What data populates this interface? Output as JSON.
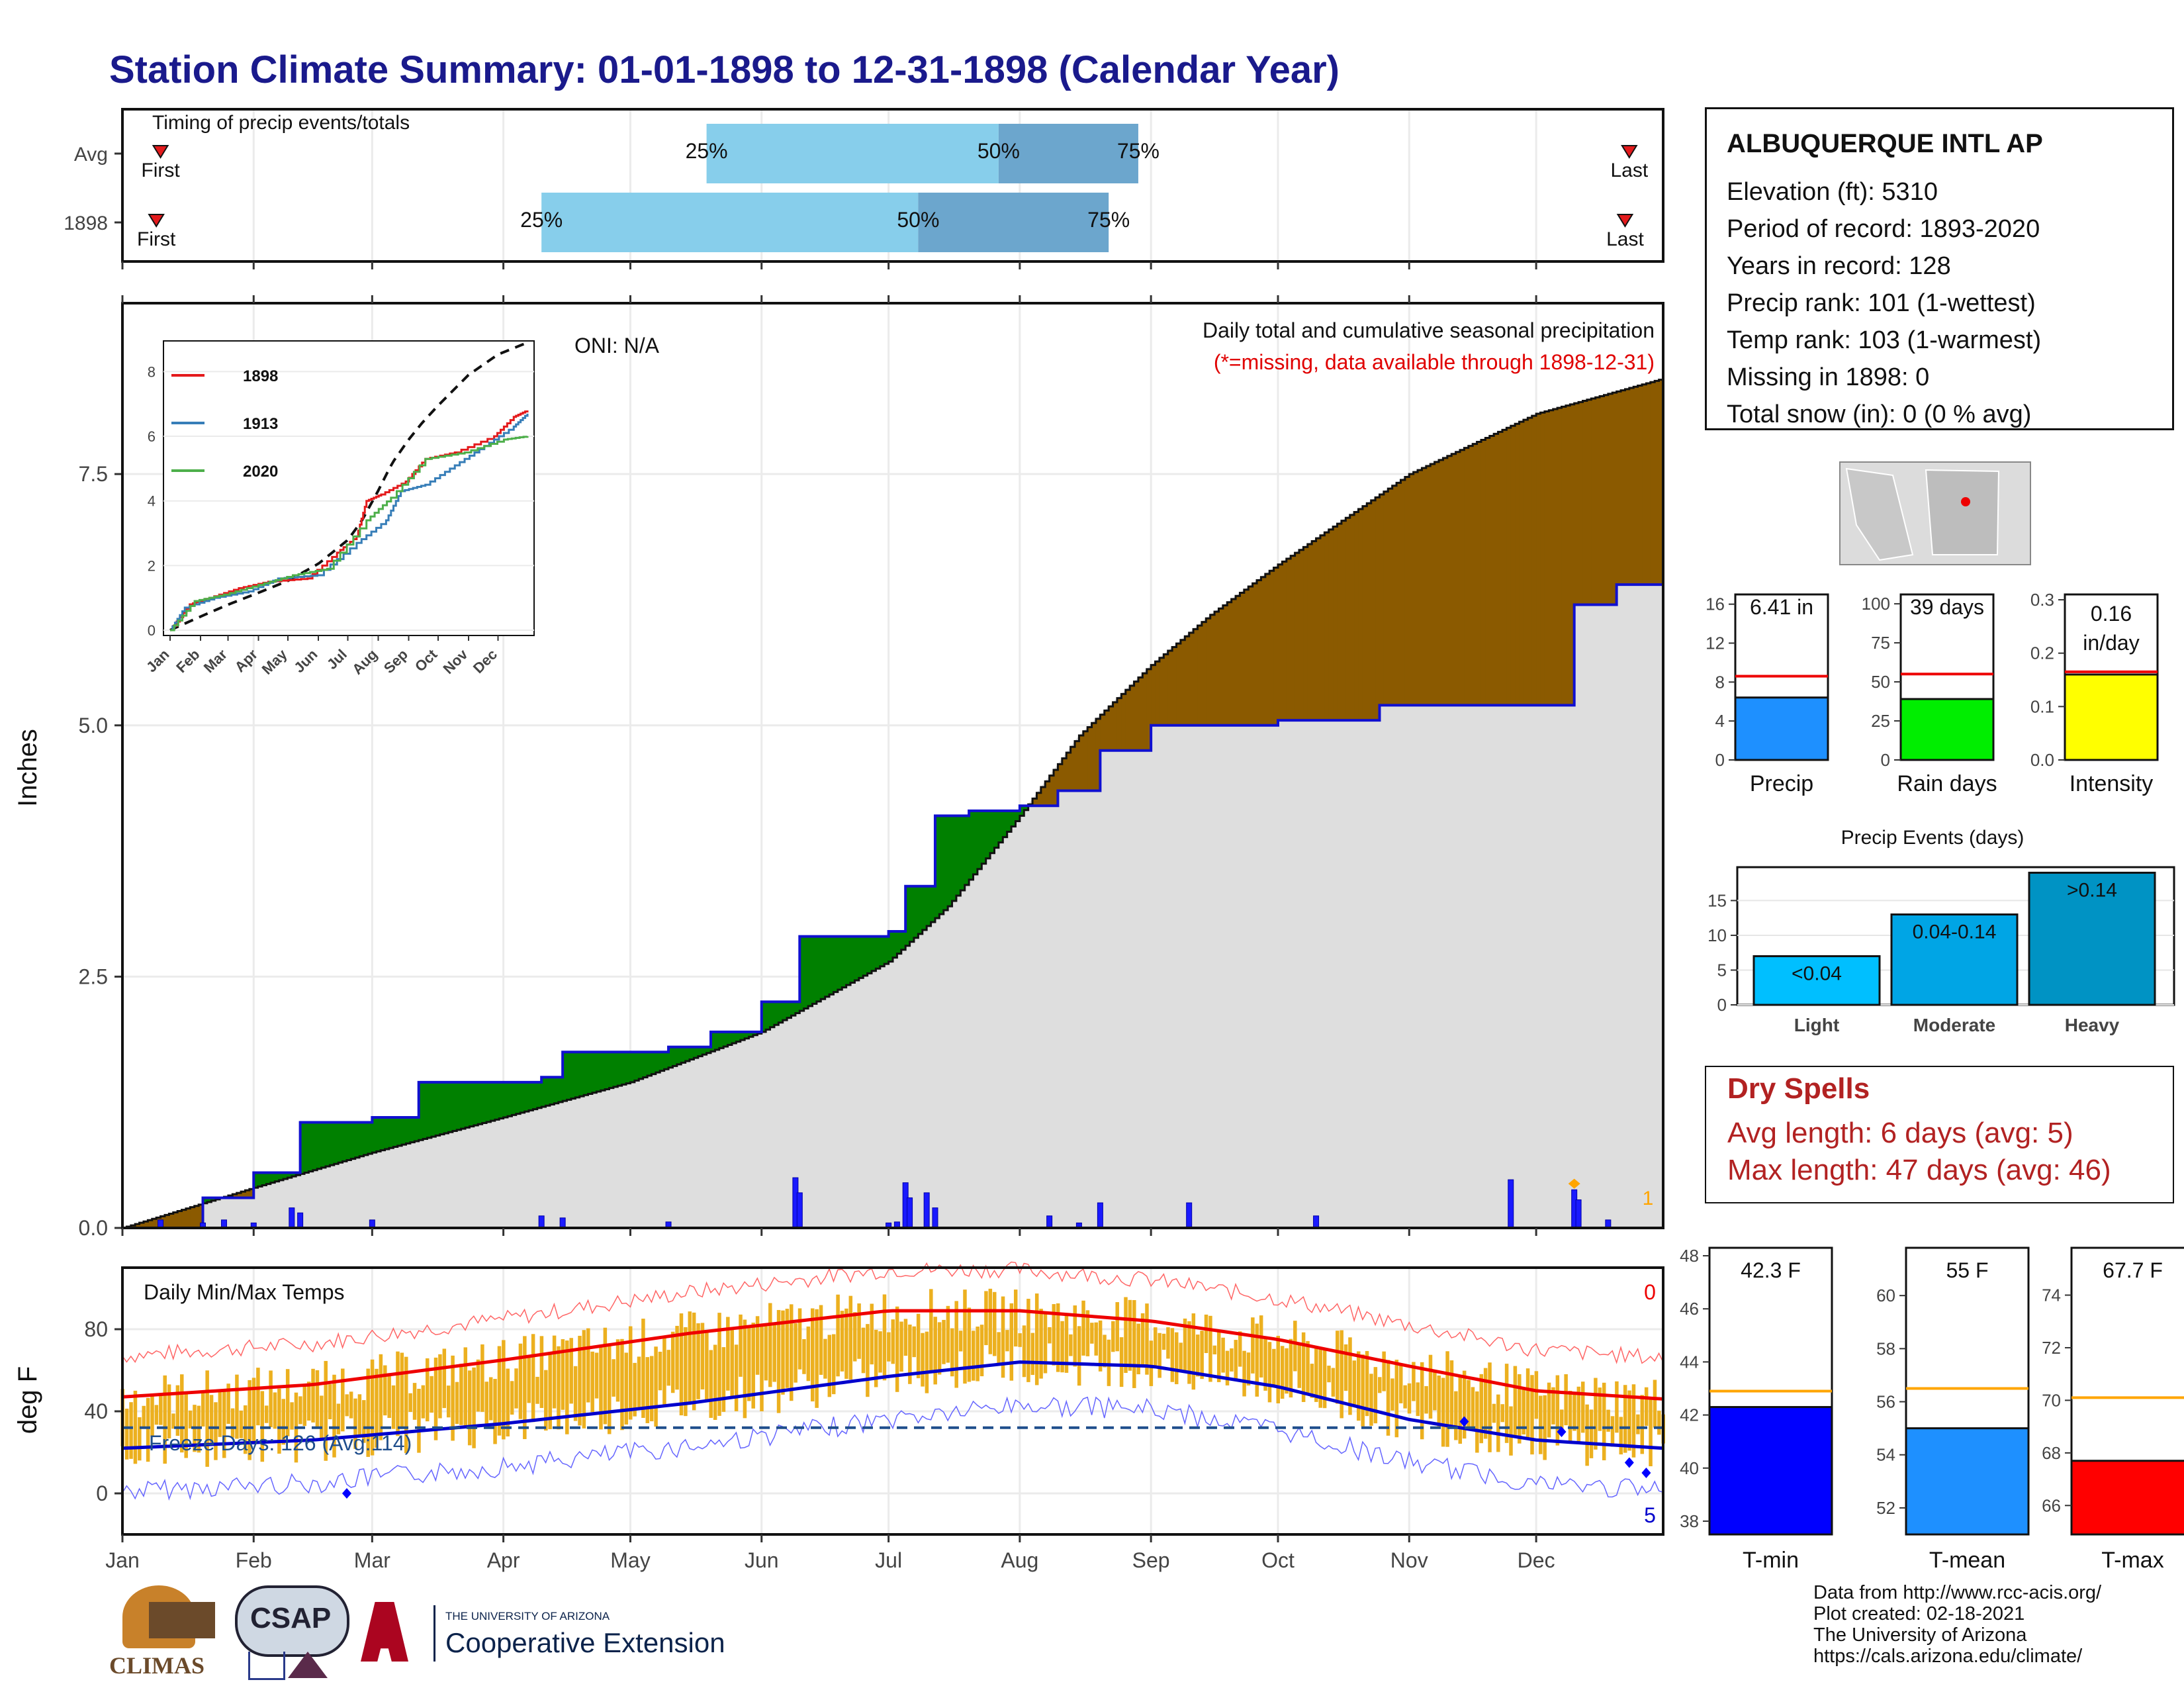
{
  "title": "Station Climate Summary: 01-01-1898 to 12-31-1898 (Calendar Year)",
  "timing": {
    "label": "Timing of precip events/totals",
    "rows": [
      {
        "name": "Avg",
        "first_label": "First",
        "last_label": "Last",
        "p25": "25%",
        "p50": "50%",
        "p75": "75%",
        "first_date": "1898-01-10",
        "last_date": "1898-12-23",
        "p25_date": "1898-05-19",
        "p50_date": "1898-07-27",
        "p75_date": "1898-08-29"
      },
      {
        "name": "1898",
        "first_label": "First",
        "last_label": "Last",
        "p25": "25%",
        "p50": "50%",
        "p75": "75%",
        "first_date": "1898-01-09",
        "last_date": "1898-12-22",
        "p25_date": "1898-04-10",
        "p50_date": "1898-07-08",
        "p75_date": "1898-08-22"
      }
    ]
  },
  "precip_panel": {
    "ylabel": "Inches",
    "title": "Daily total and cumulative seasonal precipitation",
    "subtitle": "(*=missing, data available through 1898-12-31)",
    "oni": "ONI: N/A",
    "missing_count": "1",
    "y_ticks": [
      "0.0",
      "2.5",
      "5.0",
      "7.5"
    ]
  },
  "inset": {
    "legend": [
      {
        "name": "1898",
        "color": "#e41a1c"
      },
      {
        "name": "1913",
        "color": "#377eb8"
      },
      {
        "name": "2020",
        "color": "#4daf4a"
      }
    ],
    "y_ticks": [
      "0",
      "2",
      "4",
      "6",
      "8"
    ],
    "x_ticks": [
      "Jan",
      "Feb",
      "Mar",
      "Apr",
      "May",
      "Jun",
      "Jul",
      "Aug",
      "Sep",
      "Oct",
      "Nov",
      "Dec"
    ]
  },
  "temp_panel": {
    "ylabel": "deg F",
    "title": "Daily Min/Max Temps",
    "freeze": "Freeze Days: 126 (Avg:114)",
    "count_top": "0",
    "count_bottom": "5",
    "y_ticks": [
      "0",
      "40",
      "80"
    ]
  },
  "months": [
    "Jan",
    "Feb",
    "Mar",
    "Apr",
    "May",
    "Jun",
    "Jul",
    "Aug",
    "Sep",
    "Oct",
    "Nov",
    "Dec"
  ],
  "station": {
    "name": "ALBUQUERQUE INTL AP",
    "lines": [
      "Elevation (ft): 5310",
      "Period of record: 1893-2020",
      "Years in record: 128",
      "Precip rank: 101 (1-wettest)",
      "Temp rank: 103 (1-warmest)",
      "Missing in 1898: 0",
      "Total snow (in): 0 (0 % avg)"
    ]
  },
  "mini_bars": [
    {
      "label": "Precip",
      "value_text": "6.41 in",
      "value": 6.41,
      "avg": 8.6,
      "ymax": 17,
      "ticks": [
        "0",
        "4",
        "8",
        "12",
        "16"
      ],
      "color": "#1e90ff"
    },
    {
      "label": "Rain days",
      "value_text": "39 days",
      "value": 39,
      "avg": 55,
      "ymax": 106,
      "ticks": [
        "0",
        "25",
        "50",
        "75",
        "100"
      ],
      "color": "#00ee00"
    },
    {
      "label": "Intensity",
      "value_text": "0.16 in/day",
      "value": 0.16,
      "avg": 0.165,
      "ymax": 0.31,
      "ticks": [
        "0.0",
        "0.1",
        "0.2",
        "0.3"
      ],
      "color": "#ffff00"
    }
  ],
  "events": {
    "title": "Precip Events (days)",
    "bars": [
      {
        "label": "Light",
        "range": "<0.04",
        "value": 7,
        "color": "#00bfff"
      },
      {
        "label": "Moderate",
        "range": "0.04-0.14",
        "value": 13,
        "color": "#00a5e5"
      },
      {
        "label": "Heavy",
        "range": ">0.14",
        "value": 19,
        "color": "#0093c4"
      }
    ],
    "ticks": [
      "0",
      "5",
      "10",
      "15"
    ]
  },
  "dry": {
    "title": "Dry Spells",
    "avg_line": "Avg length: 6 days (avg: 5)",
    "max_line": "Max length: 47 days (avg: 46)"
  },
  "temp_bars": [
    {
      "label": "T-min",
      "value_text": "42.3 F",
      "value": 42.3,
      "avg": 42.9,
      "ymin": 37.5,
      "ymax": 48.3,
      "ticks": [
        "38",
        "40",
        "42",
        "44",
        "46",
        "48"
      ],
      "color": "#0000ff"
    },
    {
      "label": "T-mean",
      "value_text": "55 F",
      "value": 55,
      "avg": 56.5,
      "ymin": 51,
      "ymax": 61.8,
      "ticks": [
        "52",
        "54",
        "56",
        "58",
        "60"
      ],
      "color": "#1e90ff"
    },
    {
      "label": "T-max",
      "value_text": "67.7 F",
      "value": 67.7,
      "avg": 70.1,
      "ymin": 64.9,
      "ymax": 75.8,
      "ticks": [
        "66",
        "68",
        "70",
        "72",
        "74"
      ],
      "color": "#ff0000"
    }
  ],
  "footer": {
    "lines": [
      "Data from http://www.rcc-acis.org/",
      "Plot created: 02-18-2021",
      "The University of Arizona",
      "https://cals.arizona.edu/climate/"
    ]
  },
  "logos": {
    "climas": "CLIMAS",
    "csap": "CSAP",
    "ua_small": "THE UNIVERSITY OF ARIZONA",
    "ua_big": "Cooperative Extension"
  },
  "chart_data": {
    "type": "area",
    "title": "Daily total and cumulative seasonal precipitation",
    "ylabel": "Inches",
    "ylim": [
      0,
      9.2
    ],
    "cumulative_1898": {
      "dates": [
        "1898-01-01",
        "1898-01-20",
        "1898-02-01",
        "1898-02-12",
        "1898-03-01",
        "1898-03-12",
        "1898-04-10",
        "1898-04-15",
        "1898-05-10",
        "1898-05-20",
        "1898-06-01",
        "1898-06-10",
        "1898-07-01",
        "1898-07-05",
        "1898-07-12",
        "1898-07-20",
        "1898-08-01",
        "1898-08-10",
        "1898-08-20",
        "1898-09-01",
        "1898-10-01",
        "1898-10-25",
        "1898-11-01",
        "1898-12-01",
        "1898-12-10",
        "1898-12-20",
        "1898-12-31"
      ],
      "values": [
        0,
        0.3,
        0.55,
        1.05,
        1.1,
        1.45,
        1.5,
        1.75,
        1.8,
        1.95,
        2.25,
        2.9,
        2.95,
        3.4,
        4.1,
        4.15,
        4.2,
        4.35,
        4.75,
        5.0,
        5.05,
        5.2,
        5.2,
        5.2,
        6.2,
        6.4,
        6.41
      ]
    },
    "cumulative_avg": {
      "dates": [
        "1898-01-01",
        "1898-02-01",
        "1898-03-01",
        "1898-04-01",
        "1898-05-01",
        "1898-06-01",
        "1898-07-01",
        "1898-07-15",
        "1898-08-01",
        "1898-08-15",
        "1898-09-01",
        "1898-09-15",
        "1898-10-01",
        "1898-11-01",
        "1898-12-01",
        "1898-12-31"
      ],
      "values": [
        0,
        0.4,
        0.75,
        1.1,
        1.45,
        1.95,
        2.65,
        3.2,
        4.1,
        4.9,
        5.6,
        6.1,
        6.6,
        7.5,
        8.1,
        8.45
      ]
    },
    "daily_1898": {
      "dates": [
        "1898-01-10",
        "1898-01-20",
        "1898-01-25",
        "1898-02-01",
        "1898-02-10",
        "1898-02-12",
        "1898-03-01",
        "1898-04-10",
        "1898-04-15",
        "1898-05-10",
        "1898-06-09",
        "1898-06-10",
        "1898-07-01",
        "1898-07-03",
        "1898-07-05",
        "1898-07-06",
        "1898-07-10",
        "1898-07-12",
        "1898-08-08",
        "1898-08-15",
        "1898-08-20",
        "1898-09-10",
        "1898-10-10",
        "1898-11-25",
        "1898-12-10",
        "1898-12-11",
        "1898-12-18"
      ],
      "values": [
        0.08,
        0.05,
        0.08,
        0.05,
        0.2,
        0.15,
        0.08,
        0.12,
        0.1,
        0.06,
        0.5,
        0.35,
        0.05,
        0.06,
        0.45,
        0.3,
        0.35,
        0.2,
        0.12,
        0.05,
        0.25,
        0.25,
        0.12,
        0.48,
        0.38,
        0.28,
        0.08
      ]
    },
    "temps": {
      "avg_max_dates": [
        "1898-01-01",
        "1898-02-15",
        "1898-04-01",
        "1898-05-15",
        "1898-07-01",
        "1898-08-01",
        "1898-09-01",
        "1898-10-01",
        "1898-11-01",
        "1898-12-01",
        "1898-12-31"
      ],
      "avg_max": [
        47,
        53,
        65,
        78,
        89,
        89,
        84,
        75,
        62,
        50,
        46
      ],
      "avg_min": [
        22,
        26,
        34,
        44,
        57,
        64,
        62,
        52,
        36,
        26,
        22
      ]
    }
  }
}
